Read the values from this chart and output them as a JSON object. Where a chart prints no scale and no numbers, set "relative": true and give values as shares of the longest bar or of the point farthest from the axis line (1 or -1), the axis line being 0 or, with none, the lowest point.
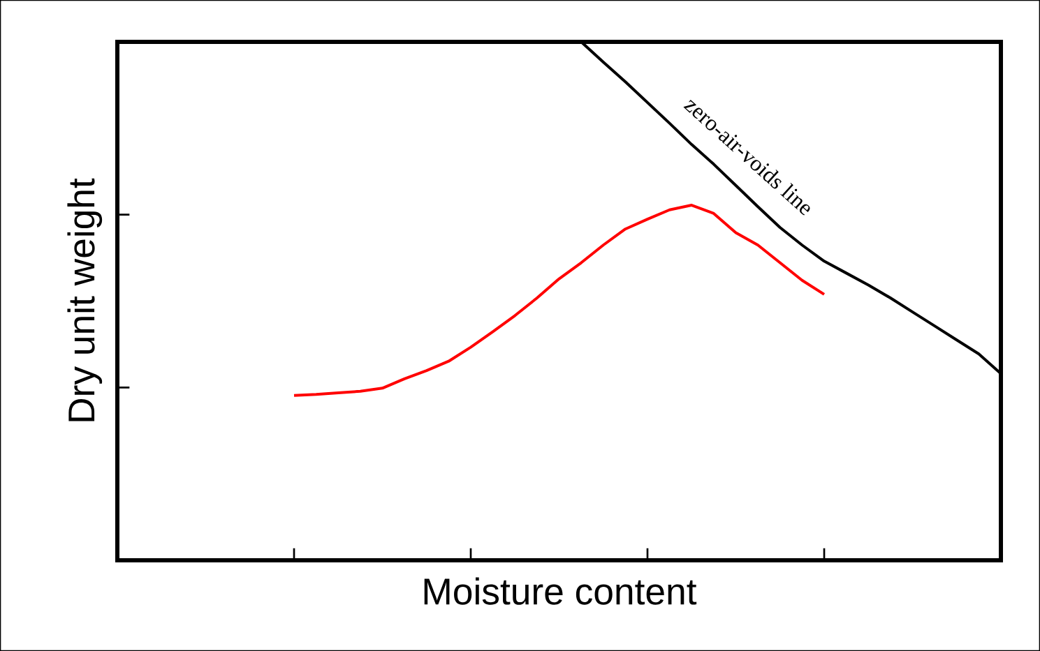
{
  "chart_data": {
    "type": "line",
    "relative": true,
    "xlabel": "Moisture content",
    "ylabel": "Dry unit weight",
    "tick_labels": false,
    "grid": false,
    "marker": "none",
    "line_style": "solid",
    "categories": [
      null,
      null,
      null,
      null,
      null,
      null,
      null,
      null,
      null,
      null,
      null,
      null,
      null,
      null,
      null,
      null,
      null,
      null,
      null,
      null,
      null,
      null,
      null,
      null,
      null,
      null,
      null,
      null,
      null,
      null,
      null,
      null,
      null,
      null,
      null,
      null,
      null,
      null,
      null,
      null,
      null
    ],
    "series": [
      {
        "color": "#ff0000",
        "values": [
          null,
          null,
          null,
          null,
          null,
          null,
          null,
          null,
          0.318,
          0.32,
          0.323,
          0.326,
          0.332,
          0.35,
          0.366,
          0.384,
          0.411,
          0.441,
          0.472,
          0.506,
          0.543,
          0.574,
          0.608,
          0.639,
          0.658,
          0.676,
          0.685,
          0.669,
          0.632,
          0.608,
          0.574,
          0.54,
          0.513,
          null,
          null,
          null,
          null,
          null,
          null,
          null,
          null
        ]
      },
      {
        "color": "#000000",
        "values": [
          null,
          null,
          null,
          null,
          null,
          null,
          null,
          null,
          null,
          null,
          null,
          null,
          null,
          null,
          null,
          null,
          null,
          null,
          null,
          null,
          null,
          1,
          0.961,
          0.923,
          0.883,
          0.843,
          0.802,
          0.764,
          0.723,
          0.682,
          0.642,
          0.608,
          0.577,
          0.554,
          0.531,
          0.506,
          0.479,
          0.452,
          0.425,
          0.398,
          0.36
        ]
      }
    ],
    "annotations": [
      "zero-air-voids line"
    ]
  }
}
